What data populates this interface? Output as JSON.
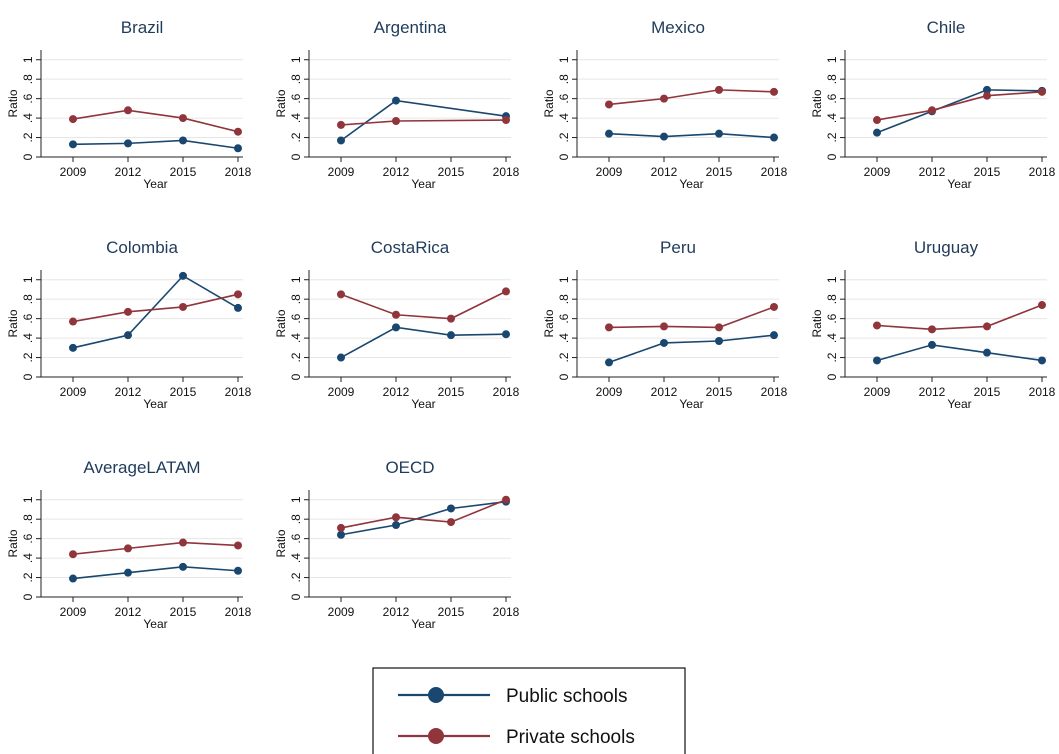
{
  "chart_data": {
    "type": "line",
    "x": [
      2009,
      2012,
      2015,
      2018
    ],
    "xticks": [
      "2009",
      "2012",
      "2015",
      "2018"
    ],
    "yticks": [
      "0",
      ".2",
      ".4",
      ".6",
      ".8",
      "1"
    ],
    "ylim": [
      0,
      1.1
    ],
    "xlabel": "Year",
    "ylabel": "Ratio",
    "grid": true,
    "legend_position": "bottom-center",
    "legend": [
      "Public schools",
      "Private schools"
    ],
    "colors": {
      "public": "#1a476f",
      "private": "#90353b"
    },
    "panels": [
      {
        "title": "Brazil",
        "series": [
          {
            "name": "Public schools",
            "values": [
              0.13,
              0.14,
              0.17,
              0.09
            ]
          },
          {
            "name": "Private schools",
            "values": [
              0.39,
              0.48,
              0.4,
              0.26
            ]
          }
        ]
      },
      {
        "title": "Argentina",
        "series": [
          {
            "name": "Public schools",
            "values": [
              0.17,
              0.58,
              null,
              0.42
            ]
          },
          {
            "name": "Private schools",
            "values": [
              0.33,
              0.37,
              null,
              0.38
            ]
          }
        ]
      },
      {
        "title": "Mexico",
        "series": [
          {
            "name": "Public schools",
            "values": [
              0.24,
              0.21,
              0.24,
              0.2
            ]
          },
          {
            "name": "Private schools",
            "values": [
              0.54,
              0.6,
              0.69,
              0.67
            ]
          }
        ]
      },
      {
        "title": "Chile",
        "series": [
          {
            "name": "Public schools",
            "values": [
              0.25,
              0.47,
              0.69,
              0.68
            ]
          },
          {
            "name": "Private schools",
            "values": [
              0.38,
              0.48,
              0.63,
              0.67
            ]
          }
        ]
      },
      {
        "title": "Colombia",
        "series": [
          {
            "name": "Public schools",
            "values": [
              0.3,
              0.43,
              1.04,
              0.71
            ]
          },
          {
            "name": "Private schools",
            "values": [
              0.57,
              0.67,
              0.72,
              0.85
            ]
          }
        ]
      },
      {
        "title": "CostaRica",
        "series": [
          {
            "name": "Public schools",
            "values": [
              0.2,
              0.51,
              0.43,
              0.44
            ]
          },
          {
            "name": "Private schools",
            "values": [
              0.85,
              0.64,
              0.6,
              0.88
            ]
          }
        ]
      },
      {
        "title": "Peru",
        "series": [
          {
            "name": "Public schools",
            "values": [
              0.15,
              0.35,
              0.37,
              0.43
            ]
          },
          {
            "name": "Private schools",
            "values": [
              0.51,
              0.52,
              0.51,
              0.72
            ]
          }
        ]
      },
      {
        "title": "Uruguay",
        "series": [
          {
            "name": "Public schools",
            "values": [
              0.17,
              0.33,
              0.25,
              0.17
            ]
          },
          {
            "name": "Private schools",
            "values": [
              0.53,
              0.49,
              0.52,
              0.74
            ]
          }
        ]
      },
      {
        "title": "AverageLATAM",
        "series": [
          {
            "name": "Public schools",
            "values": [
              0.19,
              0.25,
              0.31,
              0.27
            ]
          },
          {
            "name": "Private schools",
            "values": [
              0.44,
              0.5,
              0.56,
              0.53
            ]
          }
        ]
      },
      {
        "title": "OECD",
        "series": [
          {
            "name": "Public schools",
            "values": [
              0.64,
              0.74,
              0.91,
              0.98
            ]
          },
          {
            "name": "Private schools",
            "values": [
              0.71,
              0.82,
              0.77,
              1.0
            ]
          }
        ]
      }
    ]
  }
}
